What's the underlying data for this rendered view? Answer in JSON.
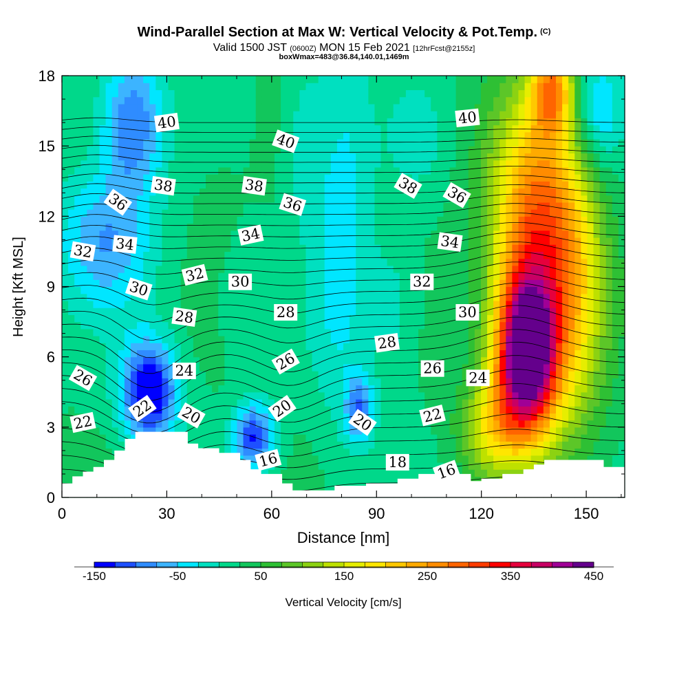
{
  "title": {
    "main": "Wind-Parallel Section at Max W: Vertical Velocity & Pot.Temp.",
    "copyright": "(C)",
    "valid_prefix": "Valid 1500 JST",
    "utc": "(0600Z)",
    "date": "MON 15 Feb 2021",
    "forecast": "[12hrFcst@2155z]",
    "box_info": "boxWmax=483@36.84,140.01,1469m"
  },
  "chart_data": {
    "type": "heatmap",
    "xlabel": "Distance [nm]",
    "ylabel": "Height [Kft MSL]",
    "xlim": [
      0,
      161
    ],
    "ylim": [
      0,
      18
    ],
    "xticks": [
      0,
      30,
      60,
      90,
      120,
      150
    ],
    "yticks": [
      0,
      3,
      6,
      9,
      12,
      15,
      18
    ],
    "colorbar": {
      "label": "Vertical Velocity [cm/s]",
      "min": -150,
      "max": 450,
      "step": 25,
      "tick_labels": [
        -150,
        -50,
        50,
        150,
        250,
        350,
        450
      ],
      "colors": [
        "#0000ff",
        "#1e50ff",
        "#2f8cff",
        "#3cb4ff",
        "#00e6ff",
        "#00e0c0",
        "#00d88a",
        "#12c65c",
        "#2ec034",
        "#5cc628",
        "#8cd212",
        "#bee100",
        "#e6ee00",
        "#ffe600",
        "#ffc800",
        "#ffaa00",
        "#ff8c00",
        "#ff6400",
        "#ff3c00",
        "#ff0000",
        "#e6003c",
        "#c80064",
        "#a00096",
        "#64008c"
      ]
    },
    "terrain": [
      [
        0,
        0.6
      ],
      [
        3,
        0.6
      ],
      [
        3,
        0.9
      ],
      [
        6,
        0.9
      ],
      [
        6,
        1.1
      ],
      [
        9,
        1.1
      ],
      [
        9,
        1.3
      ],
      [
        12,
        1.3
      ],
      [
        12,
        1.6
      ],
      [
        15,
        1.6
      ],
      [
        15,
        2.0
      ],
      [
        18,
        2.0
      ],
      [
        18,
        2.5
      ],
      [
        21,
        2.5
      ],
      [
        21,
        2.8
      ],
      [
        24,
        2.8
      ],
      [
        36,
        2.8
      ],
      [
        36,
        2.3
      ],
      [
        39,
        2.3
      ],
      [
        39,
        2.1
      ],
      [
        45,
        2.1
      ],
      [
        45,
        1.9
      ],
      [
        51,
        1.9
      ],
      [
        51,
        1.6
      ],
      [
        54,
        1.6
      ],
      [
        54,
        1.2
      ],
      [
        57,
        1.2
      ],
      [
        57,
        1.0
      ],
      [
        63,
        1.0
      ],
      [
        63,
        0.6
      ],
      [
        66,
        0.6
      ],
      [
        66,
        0.3
      ],
      [
        78,
        0.3
      ],
      [
        78,
        0.5
      ],
      [
        87,
        0.5
      ],
      [
        87,
        0.6
      ],
      [
        96,
        0.6
      ],
      [
        96,
        0.8
      ],
      [
        102,
        0.8
      ],
      [
        102,
        1.0
      ],
      [
        117,
        1.0
      ],
      [
        117,
        0.7
      ],
      [
        120,
        0.7
      ],
      [
        120,
        0.8
      ],
      [
        126,
        0.8
      ],
      [
        126,
        1.0
      ],
      [
        132,
        1.0
      ],
      [
        132,
        1.2
      ],
      [
        135,
        1.2
      ],
      [
        135,
        1.4
      ],
      [
        138,
        1.4
      ],
      [
        138,
        1.6
      ],
      [
        155,
        1.6
      ],
      [
        155,
        1.3
      ],
      [
        161,
        1.3
      ]
    ],
    "theta_contour_labels": [
      {
        "value": 40,
        "x": 30,
        "y": 16.0
      },
      {
        "value": 40,
        "x": 64,
        "y": 15.2
      },
      {
        "value": 40,
        "x": 116,
        "y": 16.2
      },
      {
        "value": 38,
        "x": 29,
        "y": 13.3
      },
      {
        "value": 38,
        "x": 55,
        "y": 13.3
      },
      {
        "value": 38,
        "x": 99,
        "y": 13.3
      },
      {
        "value": 36,
        "x": 16,
        "y": 12.6
      },
      {
        "value": 36,
        "x": 66,
        "y": 12.5
      },
      {
        "value": 36,
        "x": 113,
        "y": 12.9
      },
      {
        "value": 34,
        "x": 18,
        "y": 10.8
      },
      {
        "value": 34,
        "x": 54,
        "y": 11.2
      },
      {
        "value": 34,
        "x": 111,
        "y": 10.9
      },
      {
        "value": 32,
        "x": 6,
        "y": 10.5
      },
      {
        "value": 32,
        "x": 38,
        "y": 9.5
      },
      {
        "value": 32,
        "x": 103,
        "y": 9.2
      },
      {
        "value": 30,
        "x": 22,
        "y": 8.9
      },
      {
        "value": 30,
        "x": 51,
        "y": 9.2
      },
      {
        "value": 30,
        "x": 116,
        "y": 7.9
      },
      {
        "value": 28,
        "x": 35,
        "y": 7.7
      },
      {
        "value": 28,
        "x": 64,
        "y": 7.9
      },
      {
        "value": 28,
        "x": 93,
        "y": 6.6
      },
      {
        "value": 26,
        "x": 6,
        "y": 5.1
      },
      {
        "value": 26,
        "x": 64,
        "y": 5.8
      },
      {
        "value": 26,
        "x": 106,
        "y": 5.5
      },
      {
        "value": 24,
        "x": 35,
        "y": 5.4
      },
      {
        "value": 24,
        "x": 119,
        "y": 5.1
      },
      {
        "value": 22,
        "x": 6,
        "y": 3.2
      },
      {
        "value": 22,
        "x": 23,
        "y": 3.8
      },
      {
        "value": 22,
        "x": 106,
        "y": 3.5
      },
      {
        "value": 20,
        "x": 37,
        "y": 3.5
      },
      {
        "value": 20,
        "x": 63,
        "y": 3.8
      },
      {
        "value": 20,
        "x": 86,
        "y": 3.2
      },
      {
        "value": 18,
        "x": 96,
        "y": 1.5
      },
      {
        "value": 16,
        "x": 59,
        "y": 1.6
      },
      {
        "value": 16,
        "x": 110,
        "y": 1.1
      }
    ],
    "velocity_features": [
      {
        "x": 133,
        "y": 6.0,
        "sx": 9,
        "sy": 3.5,
        "value": 470
      },
      {
        "x": 136,
        "y": 12.0,
        "sx": 13,
        "sy": 5.0,
        "value": 250
      },
      {
        "x": 140,
        "y": 17.5,
        "sx": 6,
        "sy": 2.0,
        "value": 200
      },
      {
        "x": 123,
        "y": 3.0,
        "sx": 9,
        "sy": 2.2,
        "value": 120
      },
      {
        "x": 147,
        "y": 8.0,
        "sx": 9,
        "sy": 6.0,
        "value": 110
      },
      {
        "x": 25,
        "y": 4.5,
        "sx": 8,
        "sy": 2.2,
        "value": -190
      },
      {
        "x": 55,
        "y": 2.6,
        "sx": 6,
        "sy": 1.4,
        "value": -150
      },
      {
        "x": 85,
        "y": 3.8,
        "sx": 4,
        "sy": 1.4,
        "value": -110
      },
      {
        "x": 12,
        "y": 11.0,
        "sx": 14,
        "sy": 3.0,
        "value": -95
      },
      {
        "x": 20,
        "y": 16.0,
        "sx": 9,
        "sy": 3.0,
        "value": -130
      },
      {
        "x": 80,
        "y": 12.0,
        "sx": 9,
        "sy": 9.0,
        "value": -65
      },
      {
        "x": 69,
        "y": 15.0,
        "sx": 5,
        "sy": 3.0,
        "value": -45
      },
      {
        "x": 102,
        "y": 15.5,
        "sx": 8,
        "sy": 2.5,
        "value": -30
      },
      {
        "x": 95,
        "y": 8.0,
        "sx": 7,
        "sy": 3.0,
        "value": -40
      },
      {
        "x": 50,
        "y": 8.5,
        "sx": 10,
        "sy": 3.0,
        "value": -20
      },
      {
        "x": 153,
        "y": 16.5,
        "sx": 7,
        "sy": 2.5,
        "value": -80
      },
      {
        "x": 44,
        "y": 13.0,
        "sx": 10,
        "sy": 5.0,
        "value": 10
      }
    ]
  }
}
